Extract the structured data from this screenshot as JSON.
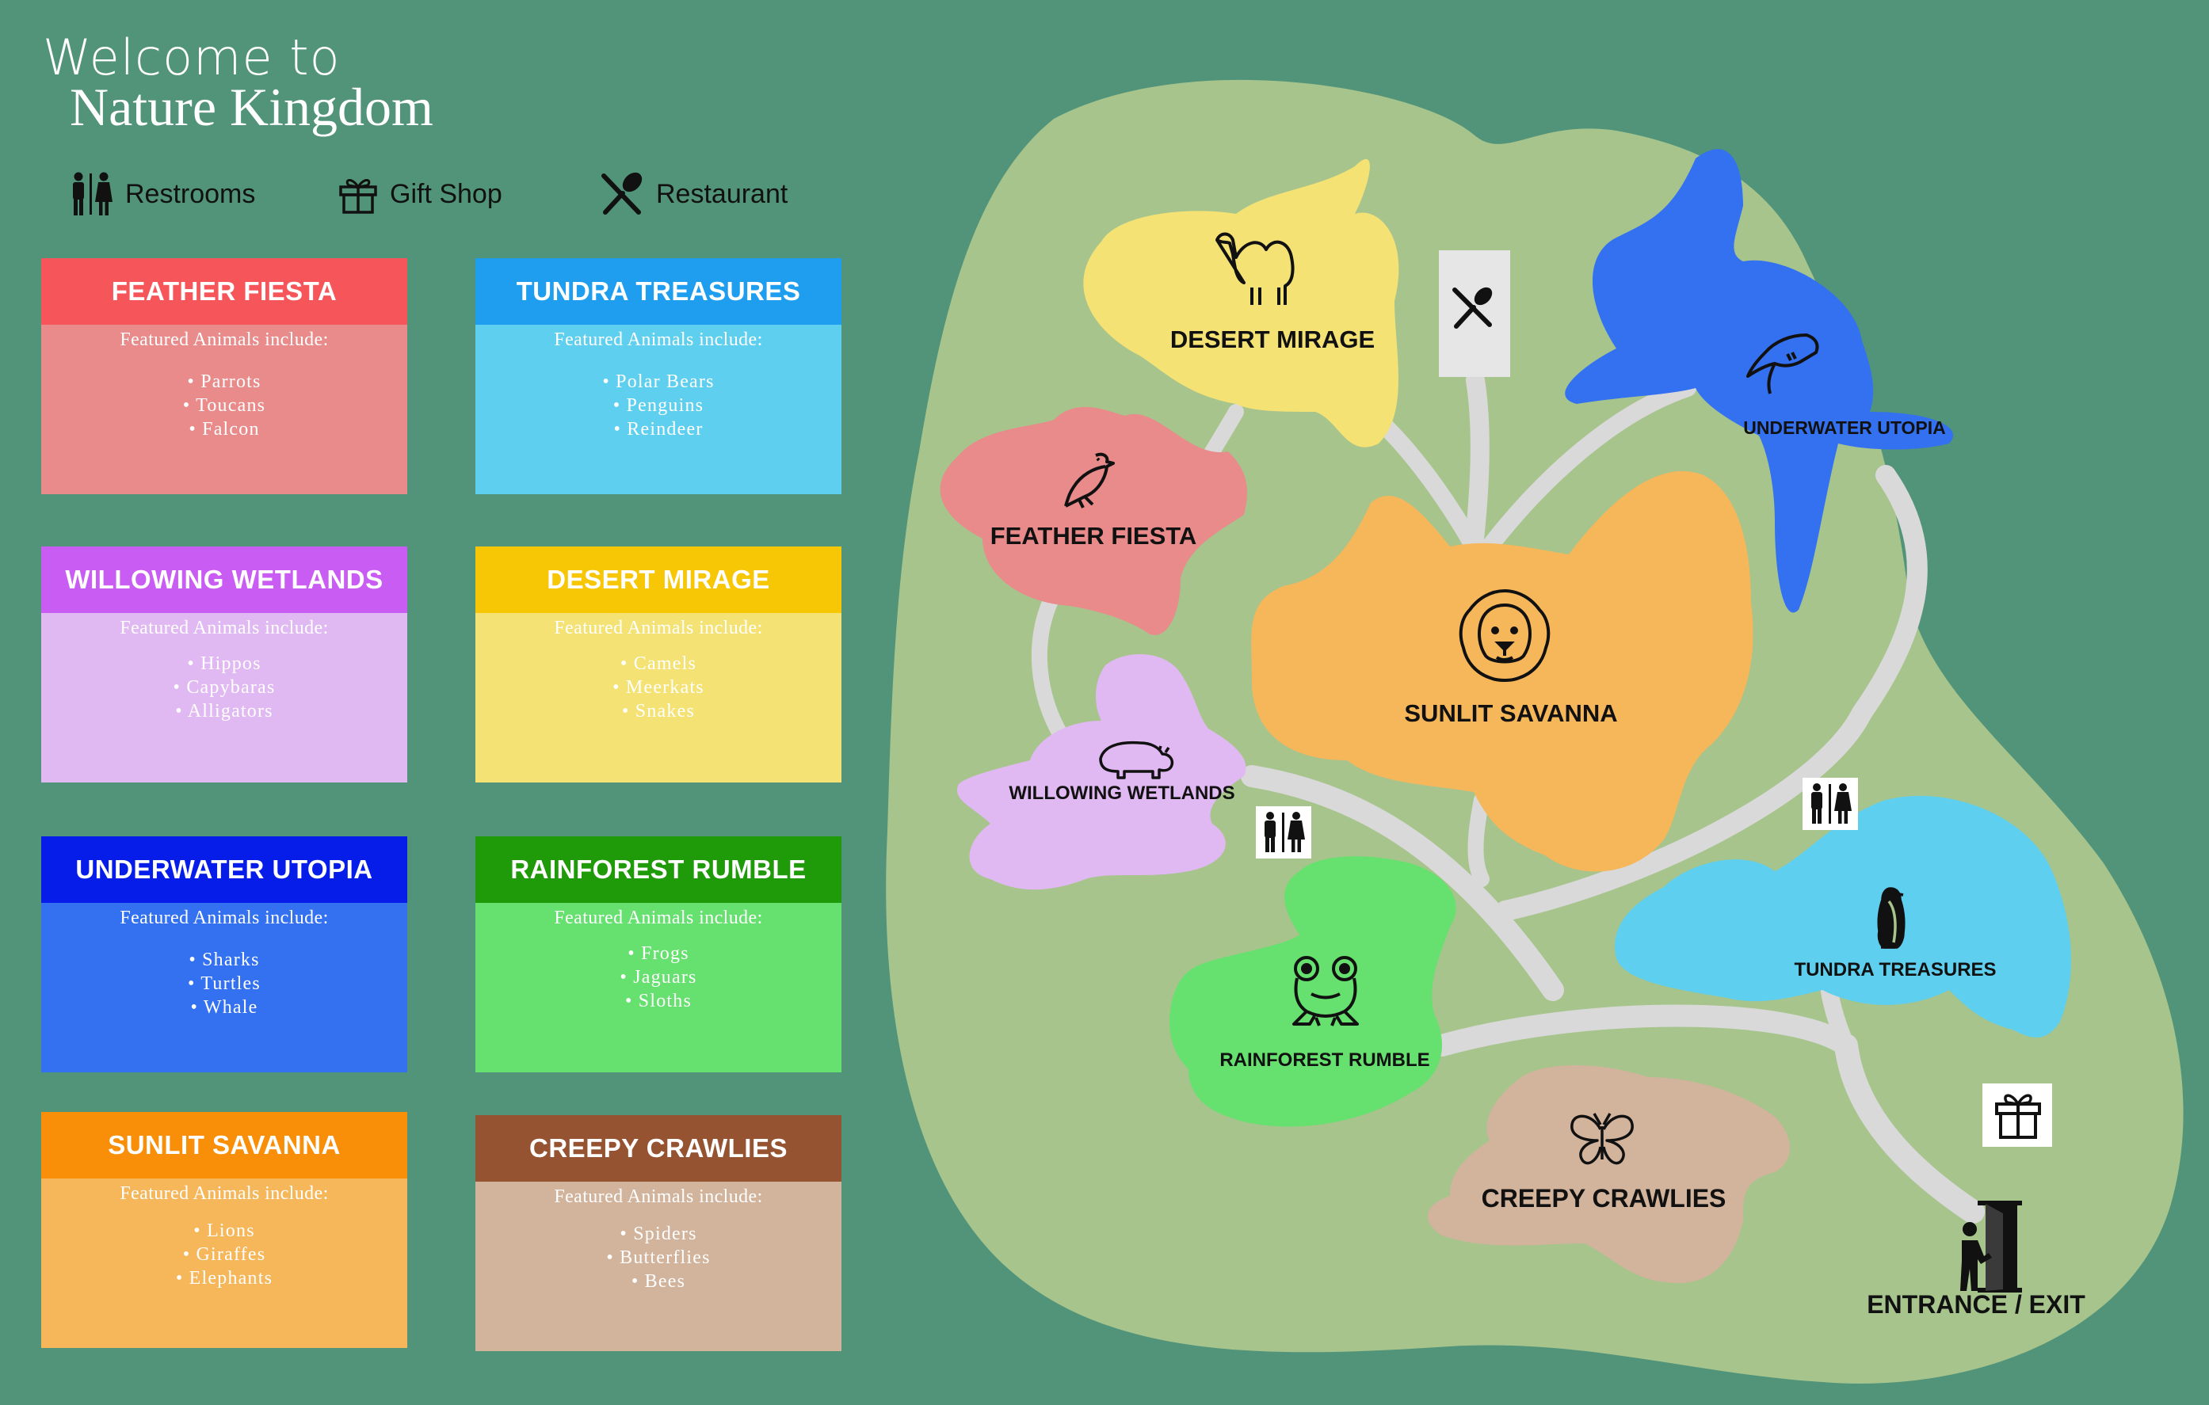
{
  "title": {
    "welcome": "Welcome to",
    "park_name": "Nature Kingdom"
  },
  "legend": [
    {
      "icon": "restroom-icon",
      "label": "Restrooms"
    },
    {
      "icon": "gift-icon",
      "label": "Gift Shop"
    },
    {
      "icon": "restaurant-icon",
      "label": "Restaurant"
    }
  ],
  "cards": [
    {
      "name": "FEATHER FIESTA",
      "intro": "Featured Animals include:",
      "animals": [
        "Parrots",
        "Toucans",
        "Falcon"
      ],
      "header_color": "#f6565a",
      "body_color": "#e88b8a"
    },
    {
      "name": "TUNDRA TREASURES",
      "intro": "Featured Animals include:",
      "animals": [
        "Polar Bears",
        "Penguins",
        "Reindeer"
      ],
      "header_color": "#1f9ef0",
      "body_color": "#5ecfee"
    },
    {
      "name": "WILLOWING WETLANDS",
      "intro": "Featured Animals include:",
      "animals": [
        "Hippos",
        "Capybaras",
        "Alligators"
      ],
      "header_color": "#c95cf3",
      "body_color": "#e1b9f2"
    },
    {
      "name": "DESERT MIRAGE",
      "intro": "Featured Animals include:",
      "animals": [
        "Camels",
        "Meerkats",
        "Snakes"
      ],
      "header_color": "#f7c706",
      "body_color": "#f4e274"
    },
    {
      "name": "UNDERWATER UTOPIA",
      "intro": "Featured Animals include:",
      "animals": [
        "Sharks",
        "Turtles",
        "Whale"
      ],
      "header_color": "#061de9",
      "body_color": "#3371f1"
    },
    {
      "name": "RAINFOREST RUMBLE",
      "intro": "Featured Animals include:",
      "animals": [
        "Frogs",
        "Jaguars",
        "Sloths"
      ],
      "header_color": "#1f9a09",
      "body_color": "#66e06e"
    },
    {
      "name": "SUNLIT SAVANNA",
      "intro": "Featured Animals include:",
      "animals": [
        "Lions",
        "Giraffes",
        "Elephants"
      ],
      "header_color": "#f98e08",
      "body_color": "#f6b65a"
    },
    {
      "name": "CREEPY CRAWLIES",
      "intro": "Featured Animals include:",
      "animals": [
        "Spiders",
        "Butterflies",
        "Bees"
      ],
      "header_color": "#955331",
      "body_color": "#d2b39c"
    }
  ],
  "map": {
    "zones": {
      "desert_mirage": "DESERT MIRAGE",
      "feather_fiesta": "FEATHER FIESTA",
      "underwater_utopia": "UNDERWATER UTOPIA",
      "sunlit_savanna": "SUNLIT SAVANNA",
      "willowing_wetlands": "WILLOWING WETLANDS",
      "tundra_treasures": "TUNDRA TREASURES",
      "rainforest_rumble": "RAINFOREST RUMBLE",
      "creepy_crawlies": "CREEPY CRAWLIES"
    },
    "entrance": "ENTRANCE / EXIT",
    "colors": {
      "background": "#52947a",
      "park_ground": "#a7c48d",
      "paths": "#d9d9d9"
    }
  }
}
